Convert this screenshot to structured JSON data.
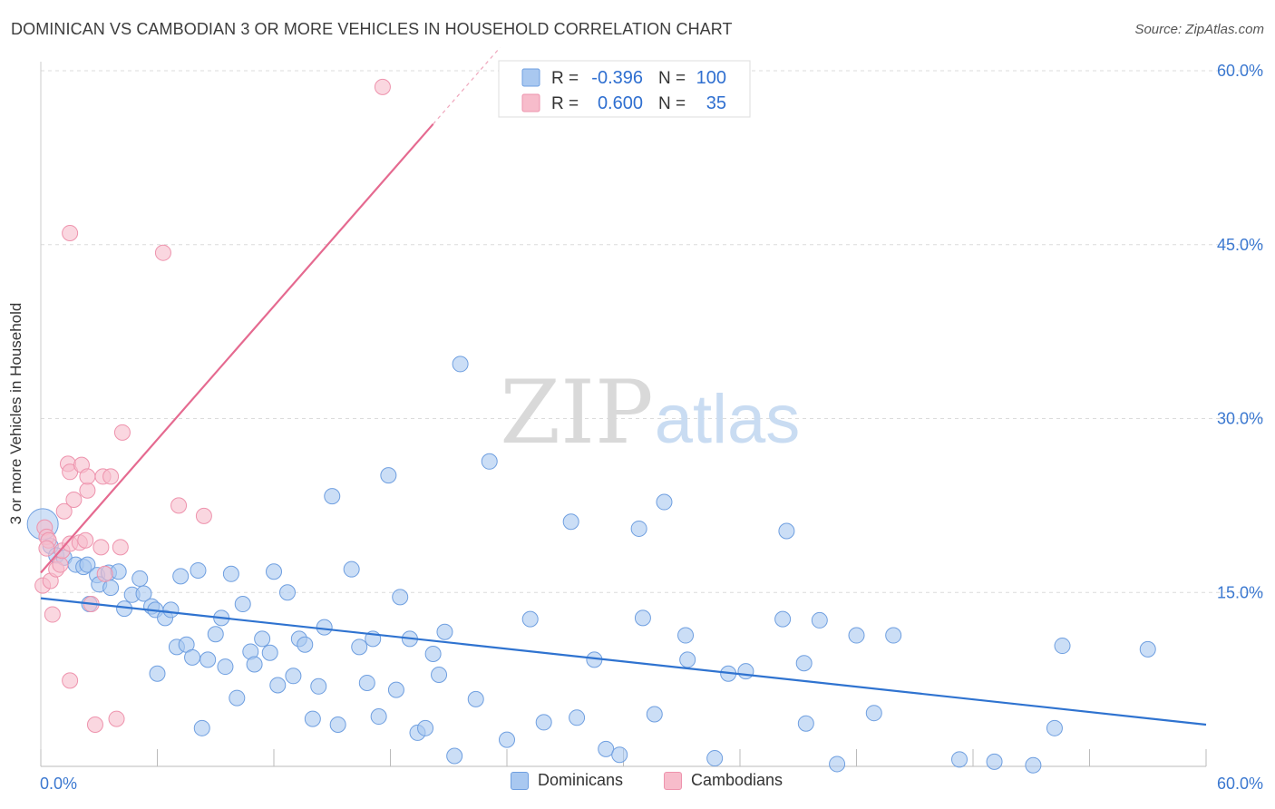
{
  "header": {
    "title": "DOMINICAN VS CAMBODIAN 3 OR MORE VEHICLES IN HOUSEHOLD CORRELATION CHART",
    "source": "Source: ZipAtlas.com"
  },
  "watermark": {
    "zip": "ZIP",
    "atlas": "atlas"
  },
  "legend": {
    "rows": [
      {
        "r_label": "R =",
        "r_value": "-0.396",
        "n_label": "N =",
        "n_value": "100"
      },
      {
        "r_label": "R =",
        "r_value": "0.600",
        "n_label": "N =",
        "n_value": "35"
      }
    ]
  },
  "bottom_legend": {
    "dominicans": "Dominicans",
    "cambodians": "Cambodians"
  },
  "colors": {
    "dominican_fill": "#a9c8f0",
    "dominican_stroke": "#6f9fe0",
    "dominican_line": "#2f73d0",
    "cambodian_fill": "#f7bccb",
    "cambodian_stroke": "#ee93ad",
    "cambodian_line": "#e56a90",
    "axis_label": "#3b78d0",
    "value_text": "#2f6fd0"
  },
  "chart_data": {
    "type": "scatter",
    "title": "DOMINICAN VS CAMBODIAN 3 OR MORE VEHICLES IN HOUSEHOLD CORRELATION CHART",
    "ylabel": "3 or more Vehicles in Household",
    "xlim": [
      0,
      60
    ],
    "ylim": [
      0,
      60
    ],
    "x_tick_labels": [
      "0.0%",
      "60.0%"
    ],
    "y_tick_values": [
      15,
      30,
      45,
      60
    ],
    "y_tick_labels": [
      "15.0%",
      "30.0%",
      "45.0%",
      "60.0%"
    ],
    "grid": true,
    "legend_placement": "top-center",
    "series": [
      {
        "name": "Dominicans",
        "r": -0.396,
        "n": 100,
        "trend": {
          "x": [
            0,
            60
          ],
          "y": [
            14.5,
            3.6
          ]
        },
        "points": [
          [
            0.1,
            20.9
          ],
          [
            0.5,
            19.0
          ],
          [
            0.8,
            18.2
          ],
          [
            1.2,
            18.0
          ],
          [
            1.8,
            17.4
          ],
          [
            2.2,
            17.2
          ],
          [
            2.4,
            17.4
          ],
          [
            2.5,
            14.0
          ],
          [
            2.9,
            16.5
          ],
          [
            3.0,
            15.7
          ],
          [
            3.5,
            16.7
          ],
          [
            3.6,
            15.4
          ],
          [
            4.0,
            16.8
          ],
          [
            4.3,
            13.6
          ],
          [
            4.7,
            14.8
          ],
          [
            5.1,
            16.2
          ],
          [
            5.3,
            14.9
          ],
          [
            5.7,
            13.8
          ],
          [
            5.9,
            13.5
          ],
          [
            6.0,
            8.0
          ],
          [
            6.4,
            12.8
          ],
          [
            6.7,
            13.5
          ],
          [
            7.0,
            10.3
          ],
          [
            7.2,
            16.4
          ],
          [
            7.5,
            10.5
          ],
          [
            7.8,
            9.4
          ],
          [
            8.1,
            16.9
          ],
          [
            8.3,
            3.3
          ],
          [
            8.6,
            9.2
          ],
          [
            9.0,
            11.4
          ],
          [
            9.3,
            12.8
          ],
          [
            9.5,
            8.6
          ],
          [
            9.8,
            16.6
          ],
          [
            10.1,
            5.9
          ],
          [
            10.4,
            14.0
          ],
          [
            10.8,
            9.9
          ],
          [
            11.0,
            8.8
          ],
          [
            11.4,
            11.0
          ],
          [
            11.8,
            9.8
          ],
          [
            12.0,
            16.8
          ],
          [
            12.2,
            7.0
          ],
          [
            12.7,
            15.0
          ],
          [
            13.0,
            7.8
          ],
          [
            13.3,
            11.0
          ],
          [
            13.6,
            10.5
          ],
          [
            14.0,
            4.1
          ],
          [
            14.3,
            6.9
          ],
          [
            14.6,
            12.0
          ],
          [
            15.0,
            23.3
          ],
          [
            15.3,
            3.6
          ],
          [
            16.0,
            17.0
          ],
          [
            16.4,
            10.3
          ],
          [
            16.8,
            7.2
          ],
          [
            17.1,
            11.0
          ],
          [
            17.4,
            4.3
          ],
          [
            17.9,
            25.1
          ],
          [
            18.3,
            6.6
          ],
          [
            18.5,
            14.6
          ],
          [
            19.0,
            11.0
          ],
          [
            19.4,
            2.9
          ],
          [
            19.8,
            3.3
          ],
          [
            20.2,
            9.7
          ],
          [
            20.5,
            7.9
          ],
          [
            20.8,
            11.6
          ],
          [
            21.3,
            0.9
          ],
          [
            21.6,
            34.7
          ],
          [
            22.4,
            5.8
          ],
          [
            23.1,
            26.3
          ],
          [
            24.0,
            2.3
          ],
          [
            25.2,
            12.7
          ],
          [
            25.9,
            3.8
          ],
          [
            27.3,
            21.1
          ],
          [
            27.6,
            4.2
          ],
          [
            28.5,
            9.2
          ],
          [
            29.1,
            1.5
          ],
          [
            29.8,
            1.0
          ],
          [
            30.8,
            20.5
          ],
          [
            31.0,
            12.8
          ],
          [
            31.6,
            4.5
          ],
          [
            32.1,
            22.8
          ],
          [
            33.2,
            11.3
          ],
          [
            33.3,
            9.2
          ],
          [
            34.7,
            0.7
          ],
          [
            35.4,
            8.0
          ],
          [
            36.3,
            8.2
          ],
          [
            38.2,
            12.7
          ],
          [
            38.4,
            20.3
          ],
          [
            39.3,
            8.9
          ],
          [
            39.4,
            3.7
          ],
          [
            40.1,
            12.6
          ],
          [
            41.0,
            0.2
          ],
          [
            42.0,
            11.3
          ],
          [
            42.9,
            4.6
          ],
          [
            43.9,
            11.3
          ],
          [
            47.3,
            0.6
          ],
          [
            49.1,
            0.4
          ],
          [
            51.1,
            0.1
          ],
          [
            52.2,
            3.3
          ],
          [
            52.6,
            10.4
          ],
          [
            57.0,
            10.1
          ]
        ]
      },
      {
        "name": "Cambodians",
        "r": 0.6,
        "n": 35,
        "trend": {
          "x": [
            0,
            20.2
          ],
          "y": [
            16.7,
            55.4
          ]
        },
        "points": [
          [
            0.1,
            15.6
          ],
          [
            0.2,
            20.6
          ],
          [
            0.3,
            19.8
          ],
          [
            0.4,
            19.5
          ],
          [
            0.5,
            16.0
          ],
          [
            0.6,
            13.1
          ],
          [
            0.8,
            17.0
          ],
          [
            1.0,
            17.4
          ],
          [
            1.1,
            18.6
          ],
          [
            1.2,
            22.0
          ],
          [
            1.4,
            26.1
          ],
          [
            1.5,
            19.2
          ],
          [
            1.5,
            25.4
          ],
          [
            1.5,
            7.4
          ],
          [
            1.7,
            23.0
          ],
          [
            2.0,
            19.3
          ],
          [
            2.1,
            26.0
          ],
          [
            2.3,
            19.5
          ],
          [
            2.4,
            23.8
          ],
          [
            2.4,
            25.0
          ],
          [
            2.6,
            14.0
          ],
          [
            2.8,
            3.6
          ],
          [
            3.1,
            18.9
          ],
          [
            3.2,
            25.0
          ],
          [
            3.3,
            16.6
          ],
          [
            3.6,
            25.0
          ],
          [
            3.9,
            4.1
          ],
          [
            4.1,
            18.9
          ],
          [
            4.2,
            28.8
          ],
          [
            1.5,
            46.0
          ],
          [
            6.3,
            44.3
          ],
          [
            7.1,
            22.5
          ],
          [
            8.4,
            21.6
          ],
          [
            17.6,
            58.6
          ],
          [
            0.3,
            18.8
          ]
        ]
      }
    ]
  }
}
